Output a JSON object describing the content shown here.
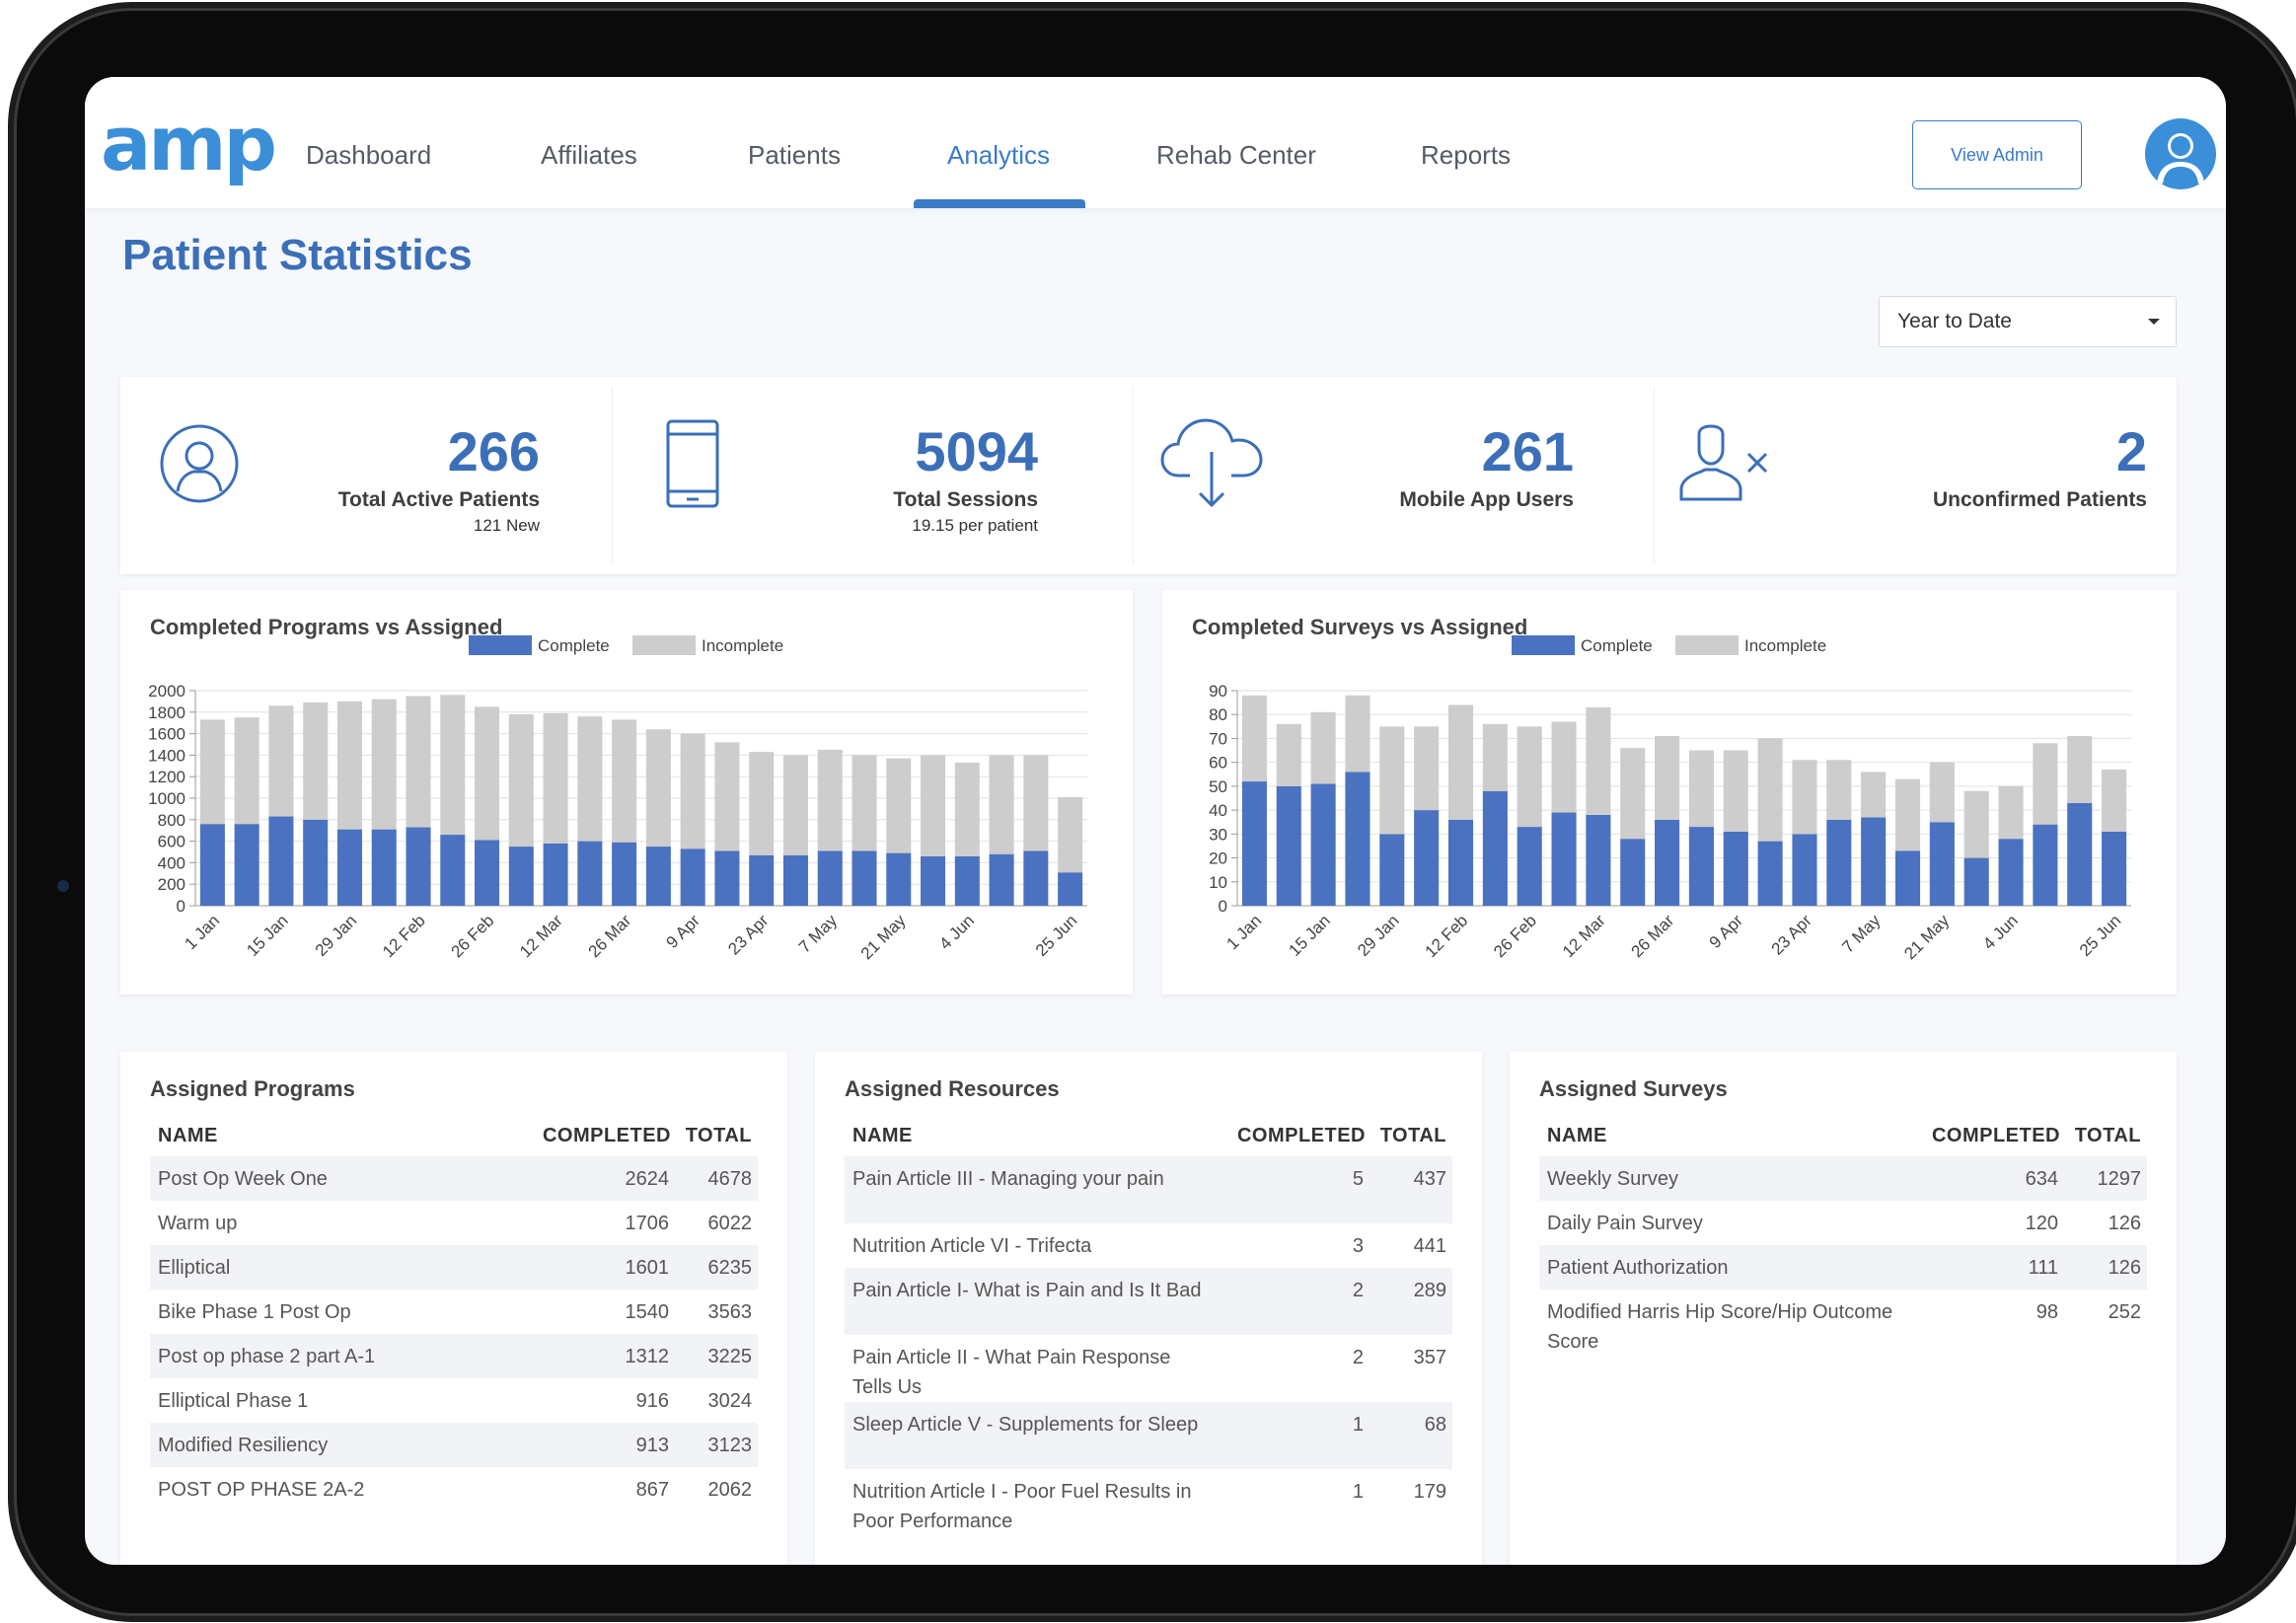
{
  "app": {
    "logo": "amp"
  },
  "nav": {
    "items": [
      "Dashboard",
      "Affiliates",
      "Patients",
      "Analytics",
      "Rehab Center",
      "Reports"
    ],
    "active": "Analytics",
    "view_admin": "View Admin",
    "accent": "#3b7bc8"
  },
  "page": {
    "title": "Patient Statistics",
    "range": "Year to Date"
  },
  "stats": [
    {
      "number": "266",
      "label": "Total Active Patients",
      "sub": "121 New",
      "icon": "user-circle-icon"
    },
    {
      "number": "5094",
      "label": "Total Sessions",
      "sub": "19.15 per patient",
      "icon": "mobile-phone-icon"
    },
    {
      "number": "261",
      "label": "Mobile App Users",
      "sub": "",
      "icon": "cloud-download-icon"
    },
    {
      "number": "2",
      "label": "Unconfirmed Patients",
      "sub": "",
      "icon": "user-x-icon"
    }
  ],
  "chart_data": [
    {
      "type": "bar",
      "stacked": true,
      "title": "Completed Programs vs Assigned",
      "legend": {
        "position": "top",
        "items": [
          "Complete",
          "Incomplete"
        ]
      },
      "colors": {
        "Complete": "#4a72c0",
        "Incomplete": "#cdcdcd"
      },
      "ylim": [
        0,
        2000
      ],
      "yticks": [
        0,
        200,
        400,
        600,
        800,
        1000,
        1200,
        1400,
        1600,
        1800,
        2000
      ],
      "x_tick_labels": [
        "1 Jan",
        "15 Jan",
        "29 Jan",
        "12 Feb",
        "26 Feb",
        "12 Mar",
        "26 Mar",
        "9 Apr",
        "23 Apr",
        "7 May",
        "21 May",
        "4 Jun",
        "25 Jun"
      ],
      "series": [
        {
          "name": "Complete",
          "values": [
            760,
            760,
            830,
            800,
            710,
            710,
            730,
            660,
            610,
            550,
            580,
            600,
            590,
            550,
            530,
            510,
            470,
            470,
            510,
            510,
            490,
            460,
            460,
            480,
            510,
            310
          ]
        },
        {
          "name": "Incomplete",
          "values": [
            970,
            990,
            1030,
            1090,
            1190,
            1210,
            1220,
            1300,
            1240,
            1230,
            1210,
            1160,
            1140,
            1090,
            1070,
            1010,
            960,
            930,
            940,
            890,
            880,
            940,
            870,
            920,
            890,
            700
          ]
        }
      ],
      "grid": true
    },
    {
      "type": "bar",
      "stacked": true,
      "title": "Completed Surveys vs Assigned",
      "legend": {
        "position": "top",
        "items": [
          "Complete",
          "Incomplete"
        ]
      },
      "colors": {
        "Complete": "#4a72c0",
        "Incomplete": "#cdcdcd"
      },
      "ylim": [
        0,
        90
      ],
      "yticks": [
        0,
        10,
        20,
        30,
        40,
        50,
        60,
        70,
        80,
        90
      ],
      "x_tick_labels": [
        "1 Jan",
        "15 Jan",
        "29 Jan",
        "12 Feb",
        "26 Feb",
        "12 Mar",
        "26 Mar",
        "9 Apr",
        "23 Apr",
        "7 May",
        "21 May",
        "4 Jun",
        "25 Jun"
      ],
      "series": [
        {
          "name": "Complete",
          "values": [
            52,
            50,
            51,
            56,
            30,
            40,
            36,
            48,
            33,
            39,
            38,
            28,
            36,
            33,
            31,
            27,
            30,
            36,
            37,
            23,
            35,
            20,
            28,
            34,
            43,
            31
          ]
        },
        {
          "name": "Incomplete",
          "values": [
            36,
            26,
            30,
            32,
            45,
            35,
            48,
            28,
            42,
            38,
            45,
            38,
            35,
            32,
            34,
            43,
            31,
            25,
            19,
            30,
            25,
            28,
            22,
            34,
            28,
            26
          ]
        }
      ],
      "grid": true
    }
  ],
  "tables": [
    {
      "title": "Assigned Programs",
      "headers": [
        "NAME",
        "COMPLETED",
        "TOTAL"
      ],
      "rows": [
        [
          "Post Op Week One",
          "2624",
          "4678"
        ],
        [
          "Warm up",
          "1706",
          "6022"
        ],
        [
          "Elliptical",
          "1601",
          "6235"
        ],
        [
          "Bike Phase 1 Post Op",
          "1540",
          "3563"
        ],
        [
          "Post op phase 2 part A-1",
          "1312",
          "3225"
        ],
        [
          "Elliptical Phase 1",
          "916",
          "3024"
        ],
        [
          "Modified Resiliency",
          "913",
          "3123"
        ],
        [
          "POST OP PHASE 2A-2",
          "867",
          "2062"
        ]
      ]
    },
    {
      "title": "Assigned Resources",
      "headers": [
        "NAME",
        "COMPLETED",
        "TOTAL"
      ],
      "rows": [
        [
          "Pain Article III - Managing your pain",
          "5",
          "437"
        ],
        [
          "Nutrition Article VI - Trifecta",
          "3",
          "441"
        ],
        [
          "Pain Article I- What is Pain and Is It Bad",
          "2",
          "289"
        ],
        [
          "Pain Article II - What Pain Response Tells Us",
          "2",
          "357"
        ],
        [
          "Sleep Article V - Supplements for Sleep",
          "1",
          "68"
        ],
        [
          "Nutrition Article I - Poor Fuel Results in Poor Performance",
          "1",
          "179"
        ]
      ]
    },
    {
      "title": "Assigned Surveys",
      "headers": [
        "NAME",
        "COMPLETED",
        "TOTAL"
      ],
      "rows": [
        [
          "Weekly Survey",
          "634",
          "1297"
        ],
        [
          "Daily Pain Survey",
          "120",
          "126"
        ],
        [
          "Patient Authorization",
          "111",
          "126"
        ],
        [
          "Modified Harris Hip Score/Hip Outcome Score",
          "98",
          "252"
        ]
      ]
    }
  ]
}
